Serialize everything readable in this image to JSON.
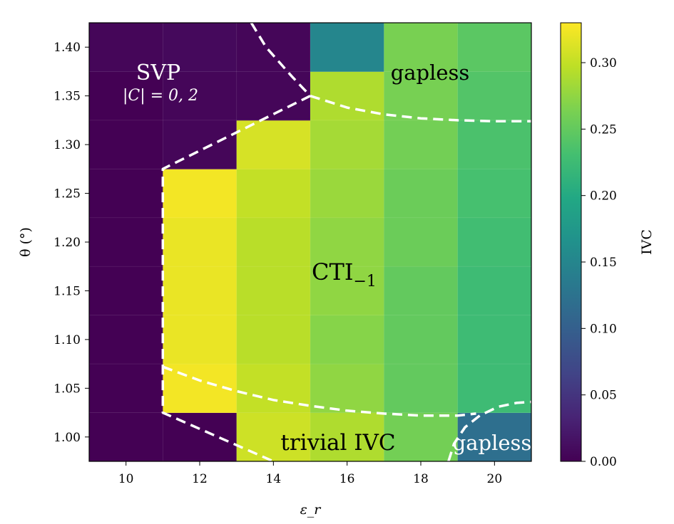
{
  "chart_data": {
    "type": "heatmap",
    "title": "",
    "xlabel": "ε_r",
    "ylabel": "θ (°)",
    "xlim": [
      9,
      21
    ],
    "ylim": [
      0.975,
      1.425
    ],
    "x_bin_edges": [
      9,
      11,
      13,
      15,
      17,
      19,
      21
    ],
    "y_bin_edges": [
      0.975,
      1.025,
      1.075,
      1.125,
      1.175,
      1.225,
      1.275,
      1.325,
      1.375,
      1.425
    ],
    "x_ticks": [
      10,
      12,
      14,
      16,
      18,
      20
    ],
    "x_tick_labels": [
      "10",
      "12",
      "14",
      "16",
      "18",
      "20"
    ],
    "y_ticks": [
      1.0,
      1.05,
      1.1,
      1.15,
      1.2,
      1.25,
      1.3,
      1.35,
      1.4
    ],
    "y_tick_labels": [
      "1.00",
      "1.05",
      "1.10",
      "1.15",
      "1.20",
      "1.25",
      "1.30",
      "1.35",
      "1.40"
    ],
    "values": [
      [
        0.0,
        0.0,
        0.305,
        0.29,
        0.26,
        0.12
      ],
      [
        0.0,
        0.325,
        0.3,
        0.275,
        0.25,
        0.225
      ],
      [
        0.0,
        0.32,
        0.295,
        0.27,
        0.25,
        0.225
      ],
      [
        0.0,
        0.32,
        0.295,
        0.275,
        0.25,
        0.225
      ],
      [
        0.0,
        0.32,
        0.295,
        0.275,
        0.255,
        0.228
      ],
      [
        0.0,
        0.325,
        0.3,
        0.28,
        0.255,
        0.232
      ],
      [
        0.0,
        0.005,
        0.31,
        0.285,
        0.26,
        0.235
      ],
      [
        0.0,
        0.005,
        0.005,
        0.29,
        0.262,
        0.24
      ],
      [
        0.005,
        0.008,
        0.005,
        0.15,
        0.263,
        0.245
      ]
    ],
    "colorbar": {
      "label": "IVC",
      "colormap": "viridis",
      "vmin": 0.0,
      "vmax": 0.33,
      "ticks": [
        0.0,
        0.05,
        0.1,
        0.15,
        0.2,
        0.25,
        0.3
      ],
      "tick_labels": [
        "0.00",
        "0.05",
        "0.10",
        "0.15",
        "0.20",
        "0.25",
        "0.30"
      ]
    },
    "boundaries": [
      {
        "name": "svp-boundary",
        "points": [
          [
            13.4,
            1.425
          ],
          [
            13.8,
            1.4
          ],
          [
            14.5,
            1.37
          ],
          [
            15.0,
            1.35
          ],
          [
            11.0,
            1.275
          ],
          [
            11.0,
            1.025
          ],
          [
            14.0,
            0.975
          ]
        ]
      },
      {
        "name": "upper-gapless-boundary",
        "points": [
          [
            15.0,
            1.35
          ],
          [
            16.0,
            1.338
          ],
          [
            17.0,
            1.331
          ],
          [
            18.0,
            1.327
          ],
          [
            19.0,
            1.325
          ],
          [
            20.0,
            1.324
          ],
          [
            21.0,
            1.324
          ]
        ]
      },
      {
        "name": "lower-cti-boundary",
        "points": [
          [
            11.0,
            1.072
          ],
          [
            12.0,
            1.058
          ],
          [
            13.0,
            1.047
          ],
          [
            14.0,
            1.038
          ],
          [
            15.0,
            1.032
          ],
          [
            16.0,
            1.027
          ],
          [
            17.0,
            1.024
          ],
          [
            18.0,
            1.022
          ],
          [
            19.0,
            1.022
          ],
          [
            19.5,
            1.024
          ]
        ]
      },
      {
        "name": "lower-gapless-boundary",
        "points": [
          [
            18.75,
            0.975
          ],
          [
            18.9,
            0.993
          ],
          [
            19.2,
            1.01
          ],
          [
            19.6,
            1.022
          ],
          [
            20.1,
            1.031
          ],
          [
            20.6,
            1.035
          ],
          [
            21.0,
            1.036
          ]
        ]
      }
    ],
    "annotations": {
      "svp": "SVP",
      "svp_chern": "|C| = 0, 2",
      "gapless_top": "gapless",
      "cti_main": "CTI",
      "cti_sub": "−1",
      "trivial": "trivial IVC",
      "gapless_bottom": "gapless"
    }
  }
}
